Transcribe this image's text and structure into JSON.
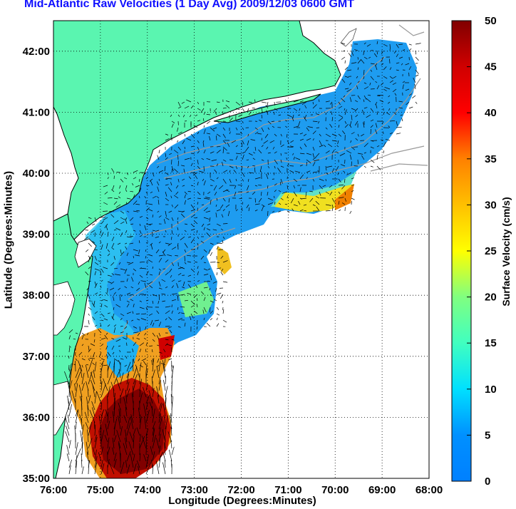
{
  "chart_data": {
    "type": "heatmap",
    "title": "Mid-Atlantic Raw Velocities (1 Day Avg) 2009/12/03 0600 GMT",
    "xlabel": "Longitude (Degrees:Minutes)",
    "ylabel": "Latitude (Degrees:Minutes)",
    "x_ticks": [
      "76:00",
      "75:00",
      "74:00",
      "73:00",
      "72:00",
      "71:00",
      "70:00",
      "69:00",
      "68:00"
    ],
    "y_ticks": [
      "42:00",
      "41:00",
      "40:00",
      "39:00",
      "38:00",
      "37:00",
      "36:00",
      "35:00"
    ],
    "xlim": [
      -76,
      -68
    ],
    "ylim": [
      35,
      42.5
    ],
    "grid": true,
    "colorbar": {
      "label": "Surface Velocity (cm/s)",
      "ticks": [
        "0",
        "5",
        "10",
        "15",
        "20",
        "25",
        "30",
        "35",
        "40",
        "45",
        "50"
      ],
      "range": [
        0,
        50
      ],
      "colormap": "jet"
    },
    "colors": {
      "land": "#5af5b0",
      "coast": "#000000",
      "bathymetry": "#9a9a9a",
      "grid": "#000000"
    }
  }
}
